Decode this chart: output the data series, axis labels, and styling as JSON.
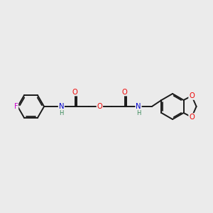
{
  "bg_color": "#ebebeb",
  "bond_color": "#1a1a1a",
  "bond_width": 1.4,
  "atom_colors": {
    "F": "#cc00cc",
    "O": "#ee0000",
    "N": "#0000cc",
    "H": "#3a8a5a"
  },
  "font_size": 7.2,
  "font_size_h": 6.0,
  "figsize": [
    3.0,
    3.0
  ],
  "dpi": 100,
  "xlim": [
    0,
    10
  ],
  "ylim": [
    0,
    10
  ]
}
